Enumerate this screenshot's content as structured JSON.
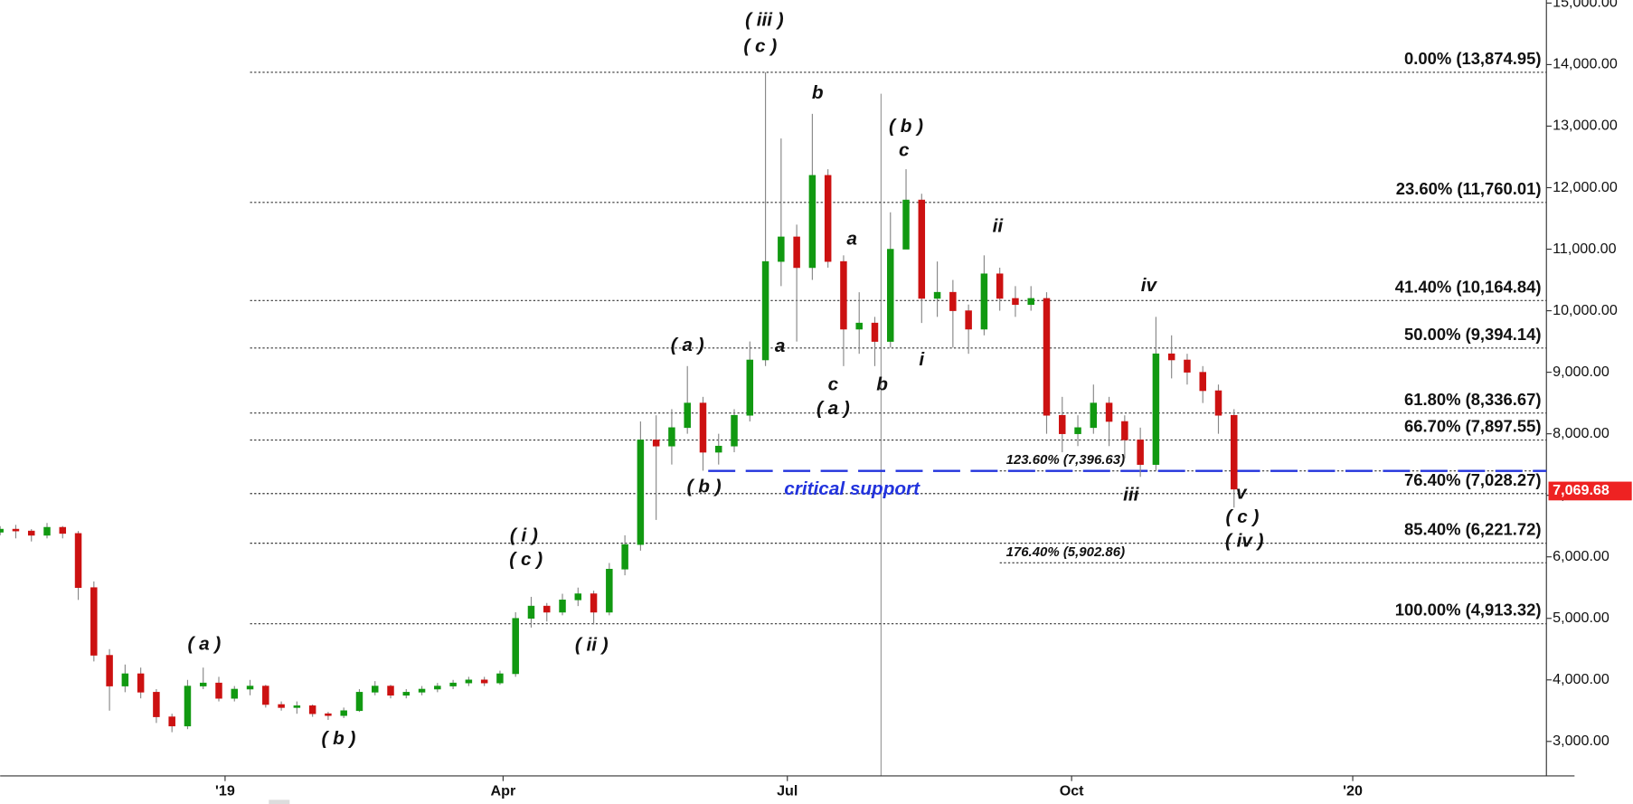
{
  "chart_data": {
    "type": "candlestick",
    "x": [
      0,
      5,
      10,
      15,
      20,
      25,
      30,
      35,
      40,
      45,
      50,
      55,
      60,
      65,
      70,
      75,
      80,
      85,
      90,
      95,
      100,
      105,
      110,
      115,
      120,
      125,
      130,
      135,
      140,
      145,
      150,
      155,
      160,
      165,
      170,
      175,
      180,
      185,
      190,
      195,
      200,
      205,
      210,
      215,
      220,
      225,
      230,
      235,
      240,
      245,
      250,
      255,
      260,
      265,
      270,
      275,
      280,
      285,
      290,
      295,
      300,
      305,
      310,
      315,
      320,
      325,
      330,
      335,
      340,
      345,
      350,
      355,
      360,
      365,
      370,
      375,
      380,
      385,
      390,
      395
    ],
    "open": [
      6400,
      6450,
      6420,
      6350,
      6480,
      6380,
      5500,
      4400,
      3900,
      4100,
      3800,
      3400,
      3250,
      3900,
      3950,
      3700,
      3850,
      3900,
      3600,
      3550,
      3580,
      3450,
      3420,
      3500,
      3800,
      3900,
      3750,
      3800,
      3850,
      3900,
      3950,
      4000,
      3950,
      4100,
      5000,
      5200,
      5100,
      5300,
      5400,
      5100,
      5800,
      6200,
      7900,
      7800,
      8100,
      8500,
      7700,
      7800,
      8300,
      9200,
      10800,
      11200,
      10700,
      12200,
      10800,
      9700,
      9800,
      9500,
      11000,
      11800,
      10200,
      10300,
      10000,
      9700,
      10600,
      10200,
      10100,
      10200,
      8300,
      8000,
      8100,
      8500,
      8200,
      7900,
      7500,
      9300,
      9200,
      9000,
      8700,
      8300
    ],
    "high": [
      6500,
      6520,
      6450,
      6550,
      6500,
      6420,
      5600,
      4500,
      4250,
      4200,
      3850,
      3450,
      4000,
      4200,
      4050,
      3900,
      4000,
      3920,
      3650,
      3650,
      3600,
      3480,
      3550,
      3850,
      3980,
      3920,
      3850,
      3900,
      3950,
      4000,
      4050,
      4050,
      4150,
      5100,
      5350,
      5250,
      5400,
      5500,
      5450,
      5900,
      6350,
      8200,
      8300,
      8400,
      9100,
      8600,
      8000,
      8400,
      9500,
      13875,
      12800,
      11400,
      13200,
      12300,
      10900,
      10300,
      9900,
      11600,
      12300,
      11900,
      10800,
      10500,
      10100,
      10900,
      10700,
      10400,
      10400,
      10300,
      8600,
      8300,
      8800,
      8600,
      8300,
      8100,
      9900,
      9600,
      9300,
      9100,
      8800,
      8400
    ],
    "low": [
      6350,
      6300,
      6250,
      6300,
      6300,
      5300,
      4300,
      3500,
      3800,
      3700,
      3300,
      3150,
      3200,
      3850,
      3650,
      3650,
      3750,
      3550,
      3500,
      3450,
      3400,
      3350,
      3380,
      3480,
      3750,
      3700,
      3700,
      3750,
      3800,
      3850,
      3900,
      3900,
      3920,
      4050,
      4850,
      4950,
      5050,
      5200,
      4900,
      5050,
      5700,
      6100,
      6600,
      7500,
      8000,
      7400,
      7500,
      7700,
      8200,
      9100,
      10400,
      9500,
      10500,
      10700,
      9100,
      9300,
      9100,
      9400,
      11000,
      9800,
      9900,
      9400,
      9300,
      9600,
      10000,
      9900,
      10000,
      8000,
      7700,
      7800,
      8000,
      7800,
      7600,
      7300,
      7400,
      8900,
      8800,
      8500,
      8000,
      6800
    ],
    "close": [
      6450,
      6420,
      6350,
      6480,
      6380,
      5500,
      4400,
      3900,
      4100,
      3800,
      3400,
      3250,
      3900,
      3950,
      3700,
      3850,
      3900,
      3600,
      3550,
      3580,
      3450,
      3420,
      3500,
      3800,
      3900,
      3750,
      3800,
      3850,
      3900,
      3950,
      4000,
      3950,
      4100,
      5000,
      5200,
      5100,
      5300,
      5400,
      5100,
      5800,
      6200,
      7900,
      7800,
      8100,
      8500,
      7700,
      7800,
      8300,
      9200,
      10800,
      11200,
      10700,
      12200,
      10800,
      9700,
      9800,
      9500,
      11000,
      11800,
      10200,
      10300,
      10000,
      9700,
      10600,
      10200,
      10100,
      10200,
      8300,
      8000,
      8100,
      8500,
      8200,
      7900,
      7500,
      9300,
      9200,
      9000,
      8700,
      8300,
      7100
    ],
    "up_color": "#119911",
    "down_color": "#cc1111",
    "xlim": [
      0,
      495
    ],
    "xticks": [
      {
        "value": 72,
        "label": "'19"
      },
      {
        "value": 161,
        "label": "Apr"
      },
      {
        "value": 252,
        "label": "Jul"
      },
      {
        "value": 343,
        "label": "Oct"
      },
      {
        "value": 433,
        "label": "'20"
      }
    ],
    "ylim": [
      2440,
      15050
    ],
    "yticks": [
      {
        "value": 3000,
        "label": "3,000.00"
      },
      {
        "value": 4000,
        "label": "4,000.00"
      },
      {
        "value": 5000,
        "label": "5,000.00"
      },
      {
        "value": 6000,
        "label": "6,000.00"
      },
      {
        "value": 7000,
        "label": "7,000.00"
      },
      {
        "value": 8000,
        "label": "8,000.00"
      },
      {
        "value": 9000,
        "label": "9,000.00"
      },
      {
        "value": 10000,
        "label": "10,000.00"
      },
      {
        "value": 11000,
        "label": "11,000.00"
      },
      {
        "value": 12000,
        "label": "12,000.00"
      },
      {
        "value": 13000,
        "label": "13,000.00"
      },
      {
        "value": 14000,
        "label": "14,000.00"
      },
      {
        "value": 15000,
        "label": "15,000.00"
      }
    ],
    "fib_levels": [
      {
        "value": 13874.95,
        "label": "0.00% (13,874.95)"
      },
      {
        "value": 11760.01,
        "label": "23.60% (11,760.01)"
      },
      {
        "value": 10164.84,
        "label": "41.40% (10,164.84)"
      },
      {
        "value": 9394.14,
        "label": "50.00% (9,394.14)"
      },
      {
        "value": 8336.67,
        "label": "61.80% (8,336.67)"
      },
      {
        "value": 7897.55,
        "label": "66.70% (7,897.55)"
      },
      {
        "value": 7028.27,
        "label": "76.40% (7,028.27)"
      },
      {
        "value": 6221.72,
        "label": "85.40% (6,221.72)"
      },
      {
        "value": 4913.32,
        "label": "100.00% (4,913.32)"
      }
    ],
    "fib_extensions": [
      {
        "value": 7396.63,
        "label": "123.60% (7,396.63)"
      },
      {
        "value": 5902.86,
        "label": "176.40% (5,902.86)"
      }
    ],
    "critical_support": {
      "value": 7396.63,
      "label": "critical support",
      "color": "#2233dd"
    },
    "last_price": {
      "value": 7069.68,
      "label": "7,069.68",
      "color": "#ee2222"
    },
    "annotations": [
      "( iii )",
      "( c )",
      "b",
      "( b )",
      "c",
      "a",
      "ii",
      "iv",
      "( a )",
      "a",
      "c",
      "b",
      "( a )",
      "i",
      "( b )",
      "iii",
      "v",
      "( c )",
      "( iv )",
      "( i )",
      "( c )",
      "( ii )",
      "( a )",
      "( b )"
    ]
  }
}
